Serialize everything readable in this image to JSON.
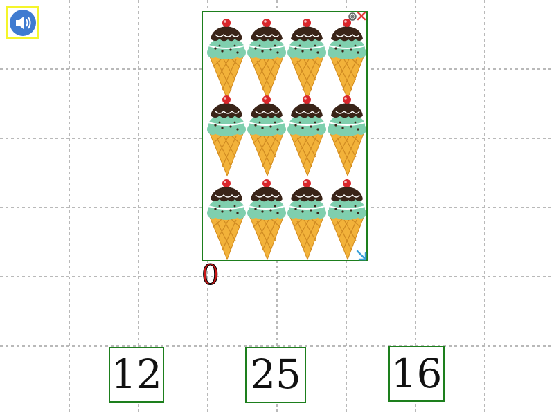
{
  "audio_button": {
    "icon": "speaker-icon"
  },
  "picture_card": {
    "item_icon": "ice-cream-cone-icon",
    "rows": 3,
    "columns": 4,
    "controls": [
      "rotate-icon",
      "close-icon",
      "resize-arrow-icon"
    ]
  },
  "count_label": "0",
  "choices": [
    {
      "label": "12"
    },
    {
      "label": "25"
    },
    {
      "label": "16"
    }
  ],
  "colors": {
    "grid_line": "#b9b9b9",
    "card_border": "#1d7f1d",
    "speaker_border": "#f5f52a",
    "speaker_fill": "#3f7bd0",
    "count_text": "#c81414",
    "close_x": "#e23b3b",
    "resize_arrow": "#3aa0d8",
    "cone": "#f2b23a",
    "scoop": "#7fcfae",
    "chocolate": "#3a2418",
    "cherry": "#d9262b"
  }
}
